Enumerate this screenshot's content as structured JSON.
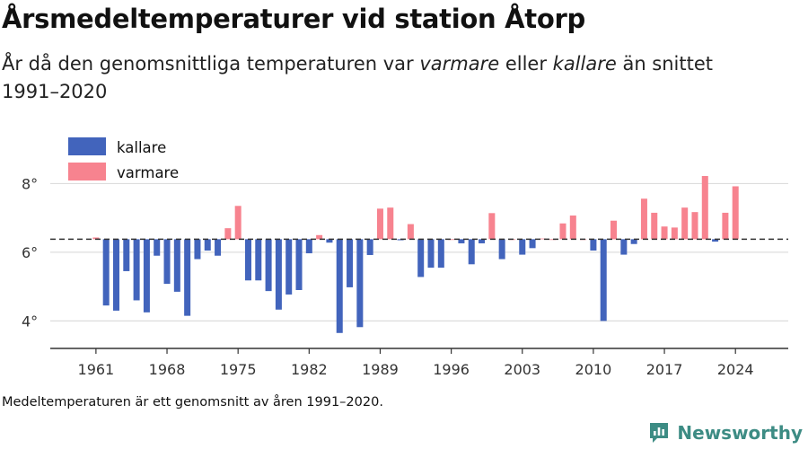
{
  "header": {
    "title": "Årsmedeltemperaturer vid station Åtorp",
    "subtitle_pre": "År då den genomsnittliga temperaturen var ",
    "subtitle_em1": "varmare",
    "subtitle_mid": " eller ",
    "subtitle_em2": "kallare",
    "subtitle_post": " än snittet 1991–2020"
  },
  "footer": {
    "caption": "Medeltemperaturen är ett genomsnitt av åren 1991–2020.",
    "brand": "Newsworthy",
    "brand_icon": "newsworthy-logo-icon"
  },
  "colors": {
    "warmer": "#f7838f",
    "colder": "#4264bc",
    "brand": "#3d8c84",
    "grid": "#dddddd",
    "axis": "#333333"
  },
  "chart_data": {
    "type": "bar",
    "baseline": 6.38,
    "ylim": [
      3.2,
      8.9
    ],
    "y_ticks": [
      4,
      6,
      8
    ],
    "y_tick_labels": [
      "4°",
      "6°",
      "8°"
    ],
    "x_ticks": [
      1961,
      1968,
      1975,
      1982,
      1989,
      1996,
      2003,
      2010,
      2017,
      2024
    ],
    "x_tick_labels": [
      "1961",
      "1968",
      "1975",
      "1982",
      "1989",
      "1996",
      "2003",
      "2010",
      "2017",
      "2024"
    ],
    "grid": true,
    "legend_position": "top-left",
    "series": [
      {
        "name": "kallare",
        "color": "#4264bc"
      },
      {
        "name": "varmare",
        "color": "#f7838f"
      }
    ],
    "years": [
      1961,
      1962,
      1963,
      1964,
      1965,
      1966,
      1967,
      1968,
      1969,
      1970,
      1971,
      1972,
      1973,
      1974,
      1975,
      1976,
      1977,
      1978,
      1979,
      1980,
      1981,
      1982,
      1983,
      1984,
      1985,
      1986,
      1987,
      1988,
      1989,
      1990,
      1991,
      1992,
      1993,
      1994,
      1995,
      1996,
      1997,
      1998,
      1999,
      2000,
      2001,
      2002,
      2003,
      2004,
      2005,
      2006,
      2007,
      2008,
      2009,
      2010,
      2011,
      2012,
      2013,
      2014,
      2015,
      2016,
      2017,
      2018,
      2019,
      2020,
      2021,
      2022,
      2023,
      2024
    ],
    "values": [
      6.43,
      4.45,
      4.3,
      5.45,
      4.6,
      4.25,
      5.9,
      5.08,
      4.85,
      4.15,
      5.8,
      6.05,
      5.9,
      6.7,
      7.35,
      5.18,
      5.18,
      4.87,
      4.33,
      4.77,
      4.9,
      5.97,
      6.5,
      6.28,
      3.65,
      4.98,
      3.82,
      5.92,
      7.27,
      7.3,
      6.35,
      6.82,
      5.28,
      5.55,
      5.55,
      6.38,
      6.26,
      5.65,
      6.26,
      7.14,
      5.8,
      6.38,
      5.93,
      6.12,
      6.4,
      6.38,
      6.84,
      7.07,
      6.38,
      6.05,
      4.0,
      6.92,
      5.93,
      6.24,
      7.56,
      7.15,
      6.75,
      6.72,
      7.3,
      7.17,
      8.22,
      6.31,
      7.15,
      7.92
    ]
  }
}
